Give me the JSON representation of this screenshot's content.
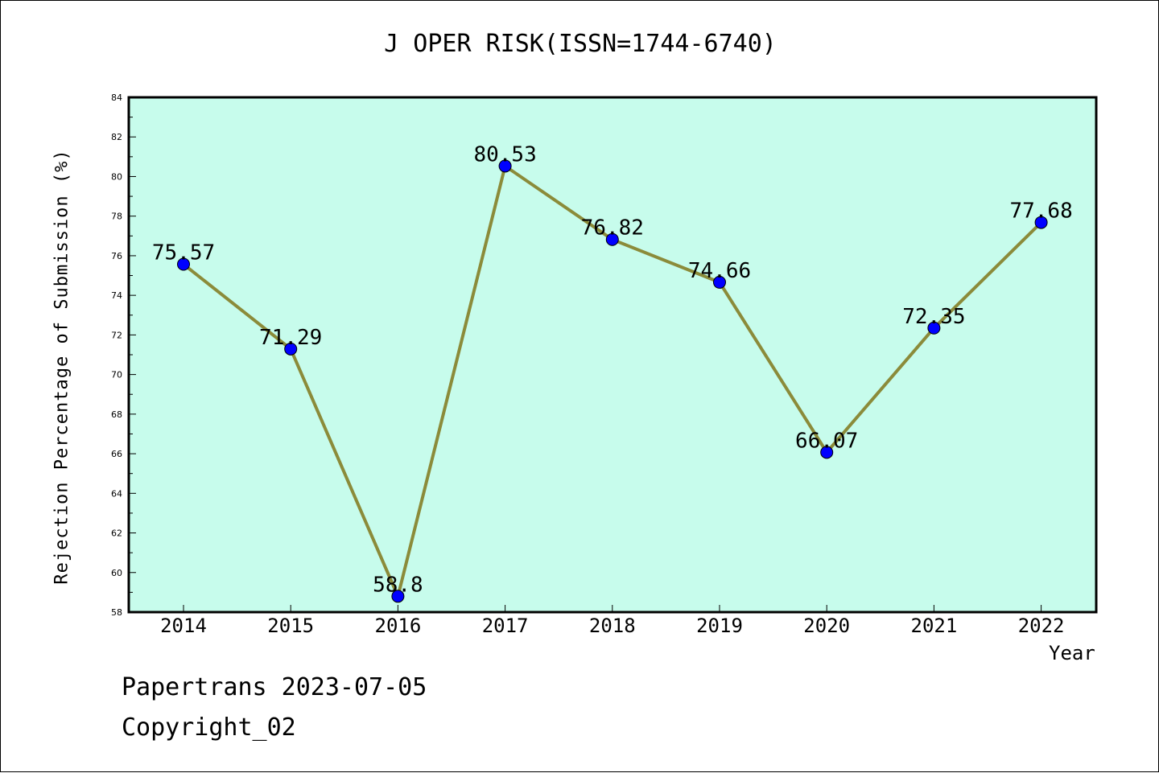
{
  "chart_data": {
    "type": "line",
    "title": "J OPER RISK(ISSN=1744-6740)",
    "xlabel": "Year",
    "ylabel": "Rejection Percentage of Submission (%)",
    "categories": [
      "2014",
      "2015",
      "2016",
      "2017",
      "2018",
      "2019",
      "2020",
      "2021",
      "2022"
    ],
    "values": [
      75.57,
      71.29,
      58.8,
      80.53,
      76.82,
      74.66,
      66.07,
      72.35,
      77.68
    ],
    "data_labels": [
      "75.57",
      "71.29",
      "58.8",
      "80.53",
      "76.82",
      "74.66",
      "66.07",
      "72.35",
      "77.68"
    ],
    "ylim": [
      58,
      84
    ],
    "yticks": [
      58,
      60,
      62,
      64,
      66,
      68,
      70,
      72,
      74,
      76,
      78,
      80,
      82,
      84
    ],
    "grid": false,
    "colors": {
      "plot_background": "#c7fcec",
      "line": "#8b8b3a",
      "marker": "#0000ff"
    }
  },
  "footer": {
    "line1": "Papertrans 2023-07-05",
    "line2": "Copyright_02"
  }
}
